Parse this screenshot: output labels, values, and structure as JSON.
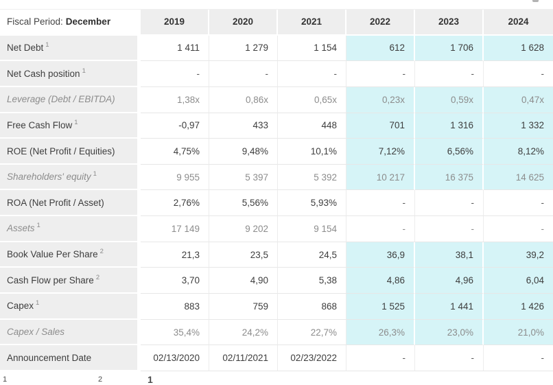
{
  "table": {
    "fiscal_period_label": "Fiscal Period:",
    "fiscal_period_value": "December",
    "years": [
      "2019",
      "2020",
      "2021",
      "2022",
      "2023",
      "2024"
    ],
    "rows": [
      {
        "label": "Net Debt",
        "sup": "1",
        "muted": false,
        "estimates_highlighted": true,
        "values": [
          "1 411",
          "1 279",
          "1 154",
          "612",
          "1 706",
          "1 628"
        ]
      },
      {
        "label": "Net Cash position",
        "sup": "1",
        "muted": false,
        "estimates_highlighted": false,
        "values": [
          "-",
          "-",
          "-",
          "-",
          "-",
          "-"
        ]
      },
      {
        "label": "Leverage (Debt / EBITDA)",
        "sup": "",
        "muted": true,
        "estimates_highlighted": true,
        "values": [
          "1,38x",
          "0,86x",
          "0,65x",
          "0,23x",
          "0,59x",
          "0,47x"
        ]
      },
      {
        "label": "Free Cash Flow",
        "sup": "1",
        "muted": false,
        "estimates_highlighted": true,
        "values": [
          "-0,97",
          "433",
          "448",
          "701",
          "1 316",
          "1 332"
        ]
      },
      {
        "label": "ROE (Net Profit / Equities)",
        "sup": "",
        "muted": false,
        "estimates_highlighted": true,
        "values": [
          "4,75%",
          "9,48%",
          "10,1%",
          "7,12%",
          "6,56%",
          "8,12%"
        ]
      },
      {
        "label": "Shareholders' equity",
        "sup": "1",
        "muted": true,
        "estimates_highlighted": true,
        "values": [
          "9 955",
          "5 397",
          "5 392",
          "10 217",
          "16 375",
          "14 625"
        ]
      },
      {
        "label": "ROA (Net Profit / Asset)",
        "sup": "",
        "muted": false,
        "estimates_highlighted": false,
        "values": [
          "2,76%",
          "5,56%",
          "5,93%",
          "-",
          "-",
          "-"
        ]
      },
      {
        "label": "Assets",
        "sup": "1",
        "muted": true,
        "estimates_highlighted": false,
        "values": [
          "17 149",
          "9 202",
          "9 154",
          "-",
          "-",
          "-"
        ]
      },
      {
        "label": "Book Value Per Share",
        "sup": "2",
        "muted": false,
        "estimates_highlighted": true,
        "values": [
          "21,3",
          "23,5",
          "24,5",
          "36,9",
          "38,1",
          "39,2"
        ]
      },
      {
        "label": "Cash Flow per Share",
        "sup": "2",
        "muted": false,
        "estimates_highlighted": true,
        "values": [
          "3,70",
          "4,90",
          "5,38",
          "4,86",
          "4,96",
          "6,04"
        ]
      },
      {
        "label": "Capex",
        "sup": "1",
        "muted": false,
        "estimates_highlighted": true,
        "values": [
          "883",
          "759",
          "868",
          "1 525",
          "1 441",
          "1 426"
        ]
      },
      {
        "label": "Capex / Sales",
        "sup": "",
        "muted": true,
        "estimates_highlighted": true,
        "values": [
          "35,4%",
          "24,2%",
          "22,7%",
          "26,3%",
          "23,0%",
          "21,0%"
        ]
      },
      {
        "label": "Announcement Date",
        "sup": "",
        "muted": false,
        "estimates_highlighted": false,
        "values": [
          "02/13/2020",
          "02/11/2021",
          "02/23/2022",
          "-",
          "-",
          "-"
        ]
      }
    ]
  },
  "footnote_markers": [
    "1",
    "2",
    "1"
  ],
  "colors": {
    "estimate_highlight": "#d6f4f7",
    "panel_gray": "#eeeeee",
    "muted_text": "#8c8c8c",
    "dark_text": "#3d3d3d",
    "row_border": "#e7e7e7",
    "column_border": "#ececec"
  }
}
